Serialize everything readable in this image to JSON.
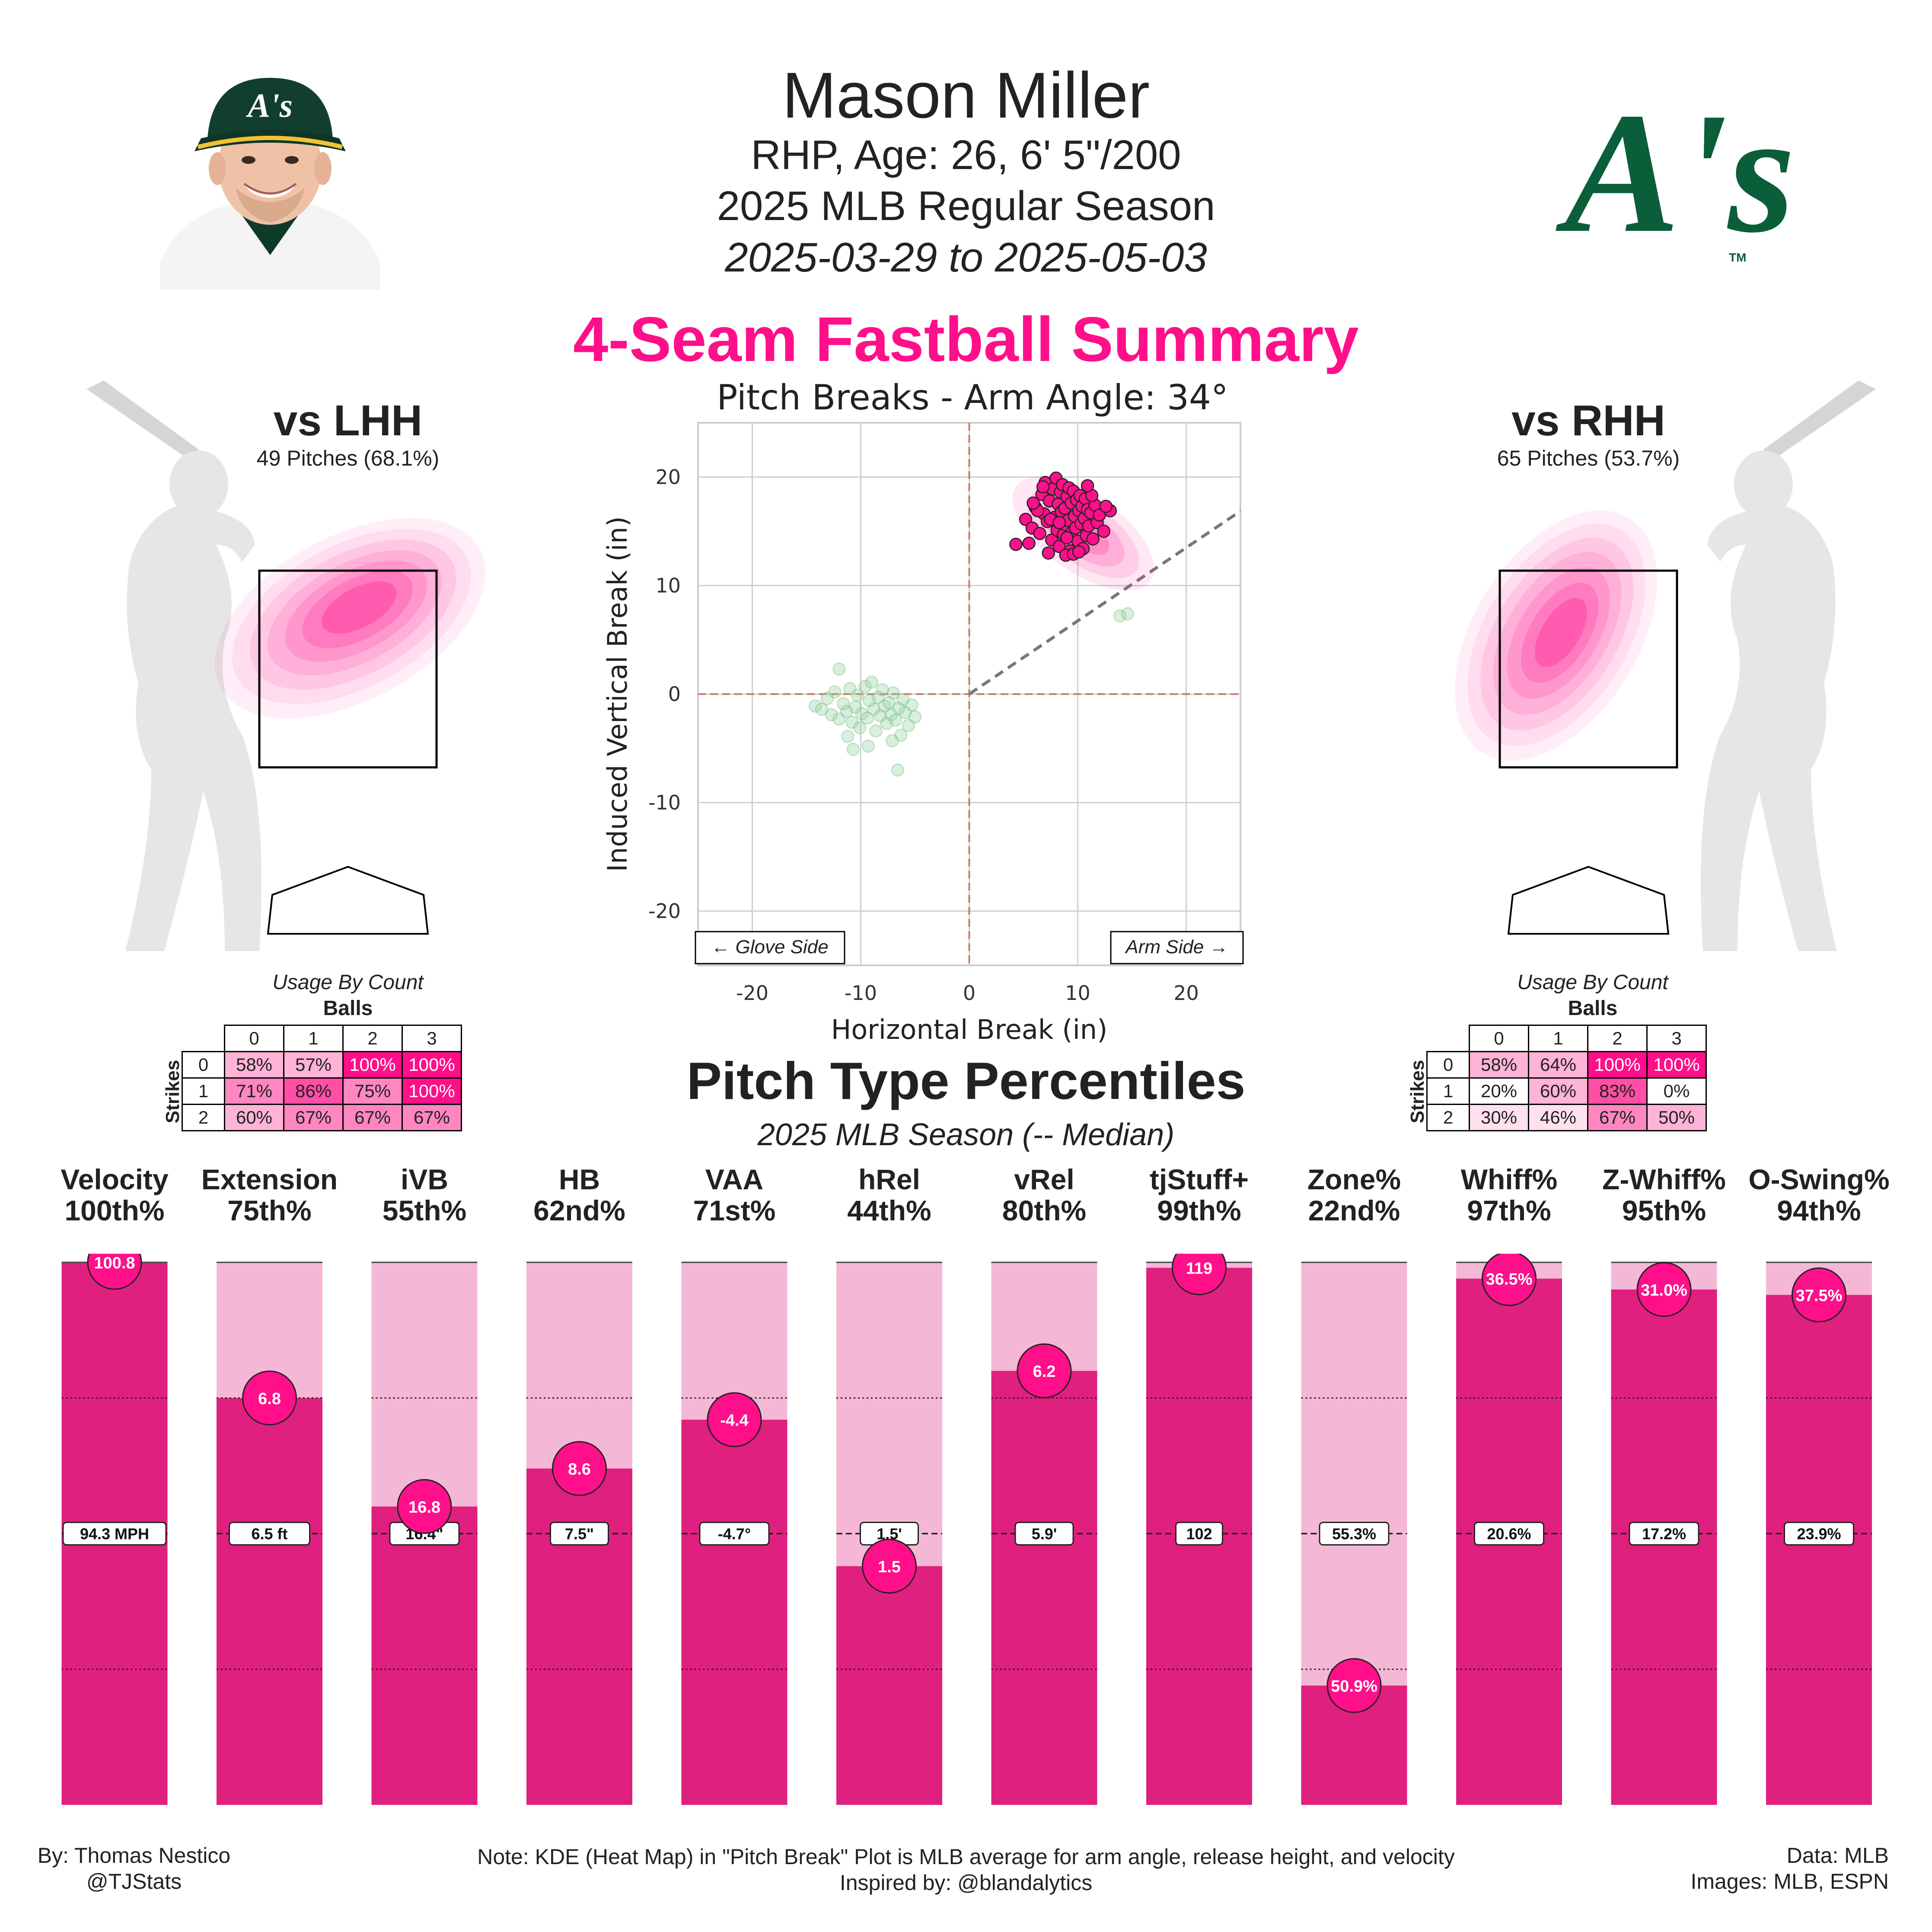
{
  "header": {
    "name": "Mason Miller",
    "subtitle": "RHP, Age: 26, 6' 5\"/200",
    "season": "2025 MLB Regular Season",
    "dates": "2025-03-29 to 2025-05-03",
    "summary_title": "4-Seam Fastball Summary",
    "logo_text": "A's",
    "logo_tm": "TM"
  },
  "colors": {
    "accent": "#ff0f8a",
    "bar_fill": "#e0207f",
    "bar_bg": "#f4b8d6",
    "team_green": "#0b5e3a"
  },
  "left_panel": {
    "title": "vs LHH",
    "pitches": "49 Pitches (68.1%)"
  },
  "right_panel": {
    "title": "vs RHH",
    "pitches": "65 Pitches (53.7%)"
  },
  "usage": {
    "caption": "Usage By Count",
    "balls_label": "Balls",
    "strikes_label": "Strikes",
    "ball_cols": [
      "0",
      "1",
      "2",
      "3"
    ],
    "strike_rows": [
      "0",
      "1",
      "2"
    ],
    "lhh": [
      [
        "58%",
        "57%",
        "100%",
        "100%"
      ],
      [
        "71%",
        "86%",
        "75%",
        "100%"
      ],
      [
        "60%",
        "67%",
        "67%",
        "67%"
      ]
    ],
    "rhh": [
      [
        "58%",
        "64%",
        "100%",
        "100%"
      ],
      [
        "20%",
        "60%",
        "83%",
        "0%"
      ],
      [
        "30%",
        "46%",
        "67%",
        "50%"
      ]
    ],
    "lhh_vals": [
      [
        58,
        57,
        100,
        100
      ],
      [
        71,
        86,
        75,
        100
      ],
      [
        60,
        67,
        67,
        67
      ]
    ],
    "rhh_vals": [
      [
        58,
        64,
        100,
        100
      ],
      [
        20,
        60,
        83,
        0
      ],
      [
        30,
        46,
        67,
        50
      ]
    ]
  },
  "chart_data": [
    {
      "type": "scatter",
      "title": "Pitch Breaks - Arm Angle: 34°",
      "xlabel": "Horizontal Break (in)",
      "ylabel": "Induced Vertical Break (in)",
      "xlim": [
        -25,
        25
      ],
      "ylim": [
        -25,
        25
      ],
      "xticks": [
        -20,
        -10,
        0,
        10,
        20
      ],
      "yticks": [
        -20,
        -10,
        0,
        10,
        20
      ],
      "grid": true,
      "arm_angle_deg": 34,
      "glove_side_label": "← Glove Side",
      "arm_side_label": "Arm Side →",
      "series": [
        {
          "name": "4-Seam Fastball",
          "color": "#ff0f8a",
          "points": [
            [
              5.2,
              16.1
            ],
            [
              5.8,
              15.3
            ],
            [
              6.1,
              17.2
            ],
            [
              6.5,
              14.8
            ],
            [
              6.7,
              18.4
            ],
            [
              6.9,
              16.6
            ],
            [
              7.0,
              19.5
            ],
            [
              7.2,
              15.9
            ],
            [
              7.4,
              17.8
            ],
            [
              7.6,
              14.2
            ],
            [
              7.7,
              18.9
            ],
            [
              7.9,
              16.3
            ],
            [
              8.0,
              19.9
            ],
            [
              8.1,
              15.1
            ],
            [
              8.2,
              17.5
            ],
            [
              8.3,
              13.6
            ],
            [
              8.4,
              18.6
            ],
            [
              8.5,
              16.8
            ],
            [
              8.6,
              19.3
            ],
            [
              8.7,
              14.7
            ],
            [
              8.8,
              17.1
            ],
            [
              8.9,
              15.6
            ],
            [
              9.0,
              18.2
            ],
            [
              9.1,
              16.0
            ],
            [
              9.2,
              19.0
            ],
            [
              9.3,
              13.2
            ],
            [
              9.4,
              17.6
            ],
            [
              9.5,
              14.9
            ],
            [
              9.6,
              18.7
            ],
            [
              9.7,
              16.4
            ],
            [
              9.8,
              15.3
            ],
            [
              9.9,
              17.9
            ],
            [
              10.0,
              14.1
            ],
            [
              10.1,
              16.9
            ],
            [
              10.2,
              18.3
            ],
            [
              10.3,
              15.7
            ],
            [
              10.4,
              17.3
            ],
            [
              10.5,
              13.4
            ],
            [
              10.6,
              16.2
            ],
            [
              10.7,
              18.0
            ],
            [
              10.8,
              14.6
            ],
            [
              10.9,
              17.0
            ],
            [
              11.0,
              15.5
            ],
            [
              11.2,
              16.7
            ],
            [
              11.4,
              14.3
            ],
            [
              11.6,
              17.4
            ],
            [
              11.8,
              15.8
            ],
            [
              12.0,
              16.5
            ],
            [
              12.4,
              15.0
            ],
            [
              13.0,
              16.9
            ],
            [
              4.3,
              13.8
            ],
            [
              5.5,
              13.9
            ],
            [
              6.3,
              16.9
            ],
            [
              7.3,
              13.0
            ],
            [
              8.9,
              12.8
            ],
            [
              9.6,
              12.9
            ],
            [
              10.1,
              13.1
            ],
            [
              6.8,
              19.1
            ],
            [
              11.3,
              18.3
            ],
            [
              7.5,
              16.1
            ],
            [
              8.3,
              15.8
            ],
            [
              9.0,
              14.4
            ],
            [
              5.9,
              17.6
            ],
            [
              12.6,
              17.3
            ],
            [
              10.9,
              19.2
            ]
          ]
        },
        {
          "name": "MLB average (KDE)",
          "color": "#8ed19b",
          "points": [
            [
              -14.2,
              -1.1
            ],
            [
              -13.6,
              -1.4
            ],
            [
              -13.1,
              -0.4
            ],
            [
              -12.7,
              -1.9
            ],
            [
              -12.4,
              0.2
            ],
            [
              -12.0,
              -2.3
            ],
            [
              -11.6,
              -0.9
            ],
            [
              -11.3,
              -1.6
            ],
            [
              -11.0,
              0.5
            ],
            [
              -10.8,
              -2.6
            ],
            [
              -10.5,
              -1.2
            ],
            [
              -10.3,
              -0.1
            ],
            [
              -10.1,
              -3.1
            ],
            [
              -9.9,
              -1.8
            ],
            [
              -9.6,
              0.7
            ],
            [
              -9.4,
              -2.2
            ],
            [
              -9.2,
              -0.6
            ],
            [
              -9.0,
              1.1
            ],
            [
              -8.8,
              -1.4
            ],
            [
              -8.6,
              -3.4
            ],
            [
              -8.4,
              -0.3
            ],
            [
              -8.2,
              -2.0
            ],
            [
              -8.0,
              0.4
            ],
            [
              -7.8,
              -1.1
            ],
            [
              -7.6,
              -2.7
            ],
            [
              -7.4,
              -0.8
            ],
            [
              -7.2,
              -1.9
            ],
            [
              -7.0,
              0.1
            ],
            [
              -6.8,
              -2.4
            ],
            [
              -6.5,
              -1.3
            ],
            [
              -6.3,
              -3.8
            ],
            [
              -6.1,
              -0.5
            ],
            [
              -5.9,
              -1.7
            ],
            [
              -5.6,
              -2.9
            ],
            [
              -5.3,
              -1.0
            ],
            [
              -5.0,
              -2.1
            ],
            [
              -6.6,
              -7.0
            ],
            [
              -10.7,
              -5.1
            ],
            [
              -12.0,
              2.3
            ],
            [
              -9.3,
              -4.8
            ],
            [
              -7.1,
              -4.3
            ],
            [
              -11.2,
              -3.9
            ],
            [
              13.9,
              7.2
            ],
            [
              14.6,
              7.4
            ]
          ]
        }
      ]
    },
    {
      "type": "bar",
      "title": "Pitch Type Percentiles",
      "subtitle": "2025 MLB Season (-- Median)",
      "ylim": [
        0,
        100
      ],
      "categories": [
        "Velocity",
        "Extension",
        "iVB",
        "HB",
        "VAA",
        "hRel",
        "vRel",
        "tjStuff+",
        "Zone%",
        "Whiff%",
        "Z-Whiff%",
        "O-Swing%"
      ],
      "percentile_labels": [
        "100th%",
        "75th%",
        "55th%",
        "62nd%",
        "71st%",
        "44th%",
        "80th%",
        "99th%",
        "22nd%",
        "97th%",
        "95th%",
        "94th%"
      ],
      "values": [
        100,
        75,
        55,
        62,
        71,
        44,
        80,
        99,
        22,
        97,
        95,
        94
      ],
      "pitcher_values": [
        "100.8",
        "6.8",
        "16.8",
        "8.6",
        "-4.4",
        "1.5",
        "6.2",
        "119",
        "50.9%",
        "36.5%",
        "31.0%",
        "37.5%"
      ],
      "median_values": [
        "94.3 MPH",
        "6.5 ft",
        "16.4\"",
        "7.5\"",
        "-4.7°",
        "1.5'",
        "5.9'",
        "102",
        "55.3%",
        "20.6%",
        "17.2%",
        "23.9%"
      ]
    }
  ],
  "footer": {
    "by": "By: Thomas Nestico",
    "handle": "@TJStats",
    "note": "Note: KDE (Heat Map) in \"Pitch Break\" Plot is MLB average for arm angle, release height, and velocity",
    "inspired": "Inspired by: @blandalytics",
    "data_src": "Data: MLB",
    "images_src": "Images: MLB, ESPN"
  }
}
